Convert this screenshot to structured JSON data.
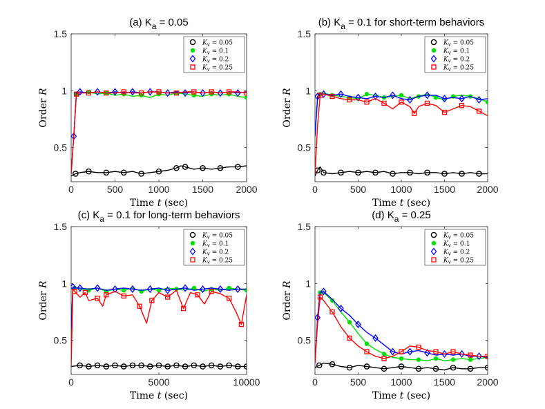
{
  "chart_data": [
    {
      "type": "line",
      "title": "(a) K",
      "title_subscript": "a",
      "title_suffix": " = 0.05",
      "xlabel": "Time",
      "xlabel_var": "t",
      "xlabel_unit": "(sec)",
      "ylabel": "Order",
      "ylabel_var": "R",
      "xlim": [
        0,
        2000
      ],
      "ylim": [
        0.2,
        1.5
      ],
      "xticks": [
        0,
        500,
        1000,
        1500,
        2000
      ],
      "yticks": [
        0.5,
        1,
        1.5
      ],
      "legend_position": "top-right",
      "series": [
        {
          "name": "Kv = 0.05",
          "label": "K_v = 0.05",
          "color": "#000000",
          "marker": "circle",
          "x": [
            0,
            50,
            100,
            200,
            300,
            400,
            500,
            600,
            700,
            800,
            900,
            1000,
            1100,
            1200,
            1250,
            1300,
            1400,
            1500,
            1600,
            1700,
            1800,
            1900,
            2000
          ],
          "y": [
            0.25,
            0.27,
            0.28,
            0.29,
            0.28,
            0.28,
            0.29,
            0.28,
            0.29,
            0.27,
            0.28,
            0.29,
            0.3,
            0.32,
            0.34,
            0.33,
            0.31,
            0.32,
            0.31,
            0.32,
            0.33,
            0.33,
            0.34
          ]
        },
        {
          "name": "Kv = 0.1",
          "label": "K_v = 0.1",
          "color": "#00e000",
          "marker": "dot",
          "x": [
            0,
            30,
            60,
            100,
            200,
            300,
            400,
            500,
            600,
            700,
            800,
            900,
            1000,
            1100,
            1200,
            1300,
            1400,
            1500,
            1600,
            1700,
            1800,
            1900,
            2000
          ],
          "y": [
            0.27,
            0.6,
            0.97,
            0.98,
            0.99,
            0.97,
            0.98,
            0.96,
            0.97,
            0.95,
            0.96,
            0.94,
            0.97,
            0.96,
            0.98,
            0.97,
            0.96,
            0.95,
            0.97,
            0.96,
            0.97,
            0.95,
            0.94
          ]
        },
        {
          "name": "Kv = 0.2",
          "label": "K_v = 0.2",
          "color": "#0000ff",
          "marker": "diamond",
          "x": [
            0,
            30,
            60,
            100,
            200,
            300,
            400,
            500,
            600,
            700,
            800,
            900,
            1000,
            1100,
            1200,
            1300,
            1400,
            1500,
            1600,
            1700,
            1800,
            1900,
            2000
          ],
          "y": [
            0.27,
            0.6,
            0.98,
            0.99,
            0.98,
            0.99,
            0.98,
            0.99,
            0.98,
            0.99,
            0.98,
            0.99,
            0.99,
            0.98,
            0.99,
            0.98,
            0.99,
            0.98,
            0.99,
            0.98,
            0.99,
            0.98,
            0.99
          ]
        },
        {
          "name": "Kv = 0.25",
          "label": "K_v = 0.25",
          "color": "#ff0000",
          "marker": "square",
          "x": [
            0,
            30,
            60,
            100,
            200,
            300,
            400,
            500,
            600,
            700,
            800,
            900,
            1000,
            1100,
            1200,
            1300,
            1400,
            1500,
            1600,
            1700,
            1800,
            1900,
            2000
          ],
          "y": [
            0.27,
            0.6,
            0.97,
            0.98,
            0.98,
            0.99,
            0.98,
            0.98,
            0.99,
            0.98,
            0.98,
            0.99,
            0.99,
            0.98,
            0.98,
            0.99,
            0.99,
            0.98,
            0.99,
            0.98,
            0.99,
            0.99,
            0.98
          ]
        }
      ]
    },
    {
      "type": "line",
      "title": "(b) K",
      "title_subscript": "a",
      "title_suffix": " = 0.1 for short-term behaviors",
      "xlabel": "Time",
      "xlabel_var": "t",
      "xlabel_unit": "(sec)",
      "ylabel": "Order",
      "ylabel_var": "R",
      "xlim": [
        0,
        2000
      ],
      "ylim": [
        0.2,
        1.5
      ],
      "xticks": [
        0,
        500,
        1000,
        1500,
        2000
      ],
      "yticks": [
        0.5,
        1,
        1.5
      ],
      "legend_position": "top-right",
      "series": [
        {
          "name": "Kv = 0.05",
          "label": "K_v = 0.05",
          "color": "#000000",
          "marker": "circle",
          "x": [
            0,
            30,
            60,
            100,
            200,
            300,
            400,
            500,
            600,
            700,
            800,
            900,
            1000,
            1100,
            1200,
            1300,
            1400,
            1500,
            1600,
            1700,
            1800,
            1900,
            2000
          ],
          "y": [
            0.25,
            0.3,
            0.33,
            0.28,
            0.27,
            0.28,
            0.29,
            0.28,
            0.29,
            0.28,
            0.29,
            0.27,
            0.28,
            0.28,
            0.27,
            0.28,
            0.28,
            0.27,
            0.28,
            0.27,
            0.28,
            0.27,
            0.27
          ]
        },
        {
          "name": "Kv = 0.1",
          "label": "K_v = 0.1",
          "color": "#00e000",
          "marker": "dot",
          "x": [
            0,
            30,
            60,
            100,
            200,
            300,
            400,
            500,
            600,
            700,
            800,
            900,
            1000,
            1100,
            1200,
            1300,
            1400,
            1500,
            1600,
            1700,
            1800,
            1900,
            2000
          ],
          "y": [
            0.6,
            0.93,
            0.97,
            0.98,
            0.96,
            0.95,
            0.94,
            0.93,
            0.97,
            0.96,
            0.94,
            0.95,
            0.96,
            0.93,
            0.95,
            0.97,
            0.94,
            0.92,
            0.95,
            0.96,
            0.95,
            0.93,
            0.9
          ]
        },
        {
          "name": "Kv = 0.2",
          "label": "K_v = 0.2",
          "color": "#0000ff",
          "marker": "diamond",
          "x": [
            0,
            30,
            60,
            100,
            200,
            300,
            400,
            500,
            600,
            700,
            800,
            900,
            1000,
            1100,
            1200,
            1300,
            1400,
            1500,
            1600,
            1700,
            1800,
            1900,
            2000
          ],
          "y": [
            0.6,
            0.95,
            0.98,
            0.97,
            0.96,
            0.97,
            0.95,
            0.94,
            0.93,
            0.95,
            0.94,
            0.96,
            0.93,
            0.92,
            0.95,
            0.96,
            0.96,
            0.93,
            0.94,
            0.93,
            0.95,
            0.92,
            0.93
          ]
        },
        {
          "name": "Kv = 0.25",
          "label": "K_v = 0.25",
          "color": "#ff0000",
          "marker": "square",
          "x": [
            0,
            30,
            60,
            100,
            200,
            300,
            400,
            500,
            600,
            700,
            800,
            900,
            1000,
            1100,
            1150,
            1200,
            1300,
            1400,
            1500,
            1600,
            1700,
            1800,
            1900,
            2000
          ],
          "y": [
            0.27,
            0.7,
            0.96,
            0.97,
            0.95,
            0.93,
            0.92,
            0.92,
            0.9,
            0.93,
            0.89,
            0.84,
            0.9,
            0.86,
            0.8,
            0.86,
            0.89,
            0.87,
            0.81,
            0.84,
            0.87,
            0.86,
            0.82,
            0.78
          ]
        }
      ]
    },
    {
      "type": "line",
      "title": "(c) K",
      "title_subscript": "a",
      "title_suffix": " = 0.1 for long-term behaviors",
      "xlabel": "Time",
      "xlabel_var": "t",
      "xlabel_unit": "(sec)",
      "ylabel": "Order",
      "ylabel_var": "R",
      "xlim": [
        0,
        10000
      ],
      "ylim": [
        0.2,
        1.5
      ],
      "xticks": [
        0,
        5000,
        10000
      ],
      "yticks": [
        0.5,
        1,
        1.5
      ],
      "legend_position": "top-right",
      "series": [
        {
          "name": "Kv = 0.05",
          "label": "K_v = 0.05",
          "color": "#000000",
          "marker": "circle",
          "x": [
            0,
            500,
            1000,
            1500,
            2000,
            2500,
            3000,
            3500,
            4000,
            4500,
            5000,
            5500,
            6000,
            6500,
            7000,
            7500,
            8000,
            8500,
            9000,
            9500,
            10000
          ],
          "y": [
            0.27,
            0.28,
            0.27,
            0.28,
            0.27,
            0.28,
            0.27,
            0.28,
            0.28,
            0.27,
            0.28,
            0.27,
            0.28,
            0.27,
            0.28,
            0.27,
            0.28,
            0.27,
            0.28,
            0.27,
            0.27
          ]
        },
        {
          "name": "Kv = 0.1",
          "label": "K_v = 0.1",
          "color": "#00e000",
          "marker": "dot",
          "x": [
            0,
            100,
            200,
            500,
            1000,
            1500,
            2000,
            2500,
            3000,
            3500,
            4000,
            4500,
            5000,
            5500,
            6000,
            6500,
            7000,
            7500,
            8000,
            8500,
            9000,
            9500,
            10000
          ],
          "y": [
            0.6,
            0.97,
            0.96,
            0.95,
            0.94,
            0.96,
            0.93,
            0.95,
            0.94,
            0.96,
            0.93,
            0.95,
            0.94,
            0.96,
            0.95,
            0.94,
            0.96,
            0.93,
            0.95,
            0.94,
            0.96,
            0.95,
            0.94
          ]
        },
        {
          "name": "Kv = 0.2",
          "label": "K_v = 0.2",
          "color": "#0000ff",
          "marker": "diamond",
          "x": [
            0,
            100,
            200,
            500,
            1000,
            1500,
            2000,
            2500,
            3000,
            3500,
            4000,
            4500,
            5000,
            5500,
            6000,
            6500,
            7000,
            7500,
            8000,
            8500,
            9000,
            9500,
            10000
          ],
          "y": [
            0.6,
            0.97,
            0.96,
            0.96,
            0.95,
            0.96,
            0.94,
            0.95,
            0.96,
            0.95,
            0.94,
            0.95,
            0.96,
            0.94,
            0.95,
            0.96,
            0.94,
            0.95,
            0.96,
            0.95,
            0.94,
            0.95,
            0.95
          ]
        },
        {
          "name": "Kv = 0.25",
          "label": "K_v = 0.25",
          "color": "#ff0000",
          "marker": "square",
          "x": [
            0,
            100,
            200,
            500,
            800,
            1000,
            1500,
            1800,
            2000,
            2500,
            3000,
            3500,
            3900,
            4300,
            4600,
            5000,
            5500,
            6000,
            6400,
            6800,
            7200,
            7600,
            8000,
            8500,
            9000,
            9400,
            9700,
            10000
          ],
          "y": [
            0.27,
            0.95,
            0.93,
            0.88,
            0.92,
            0.85,
            0.87,
            0.8,
            0.9,
            0.93,
            0.89,
            0.9,
            0.8,
            0.65,
            0.85,
            0.92,
            0.88,
            0.94,
            0.78,
            0.92,
            0.9,
            0.82,
            0.93,
            0.91,
            0.87,
            0.75,
            0.64,
            0.9
          ]
        }
      ]
    },
    {
      "type": "line",
      "title": "(d) K",
      "title_subscript": "a",
      "title_suffix": " = 0.25",
      "xlabel": "Time",
      "xlabel_var": "t",
      "xlabel_unit": "(sec)",
      "ylabel": "Order",
      "ylabel_var": "R",
      "xlim": [
        0,
        2000
      ],
      "ylim": [
        0.2,
        1.5
      ],
      "xticks": [
        0,
        500,
        1000,
        1500,
        2000
      ],
      "yticks": [
        0.5,
        1,
        1.5
      ],
      "legend_position": "top-right",
      "series": [
        {
          "name": "Kv = 0.05",
          "label": "K_v = 0.05",
          "color": "#000000",
          "marker": "circle",
          "x": [
            0,
            50,
            100,
            200,
            300,
            400,
            500,
            600,
            700,
            800,
            900,
            1000,
            1100,
            1200,
            1300,
            1400,
            1500,
            1600,
            1700,
            1800,
            1900,
            2000
          ],
          "y": [
            0.26,
            0.28,
            0.3,
            0.29,
            0.27,
            0.26,
            0.28,
            0.27,
            0.26,
            0.25,
            0.26,
            0.27,
            0.26,
            0.25,
            0.26,
            0.25,
            0.24,
            0.26,
            0.25,
            0.25,
            0.26,
            0.26
          ]
        },
        {
          "name": "Kv = 0.1",
          "label": "K_v = 0.1",
          "color": "#00e000",
          "marker": "dot",
          "x": [
            0,
            30,
            60,
            100,
            200,
            300,
            400,
            500,
            600,
            700,
            800,
            900,
            1000,
            1100,
            1200,
            1300,
            1400,
            1500,
            1600,
            1700,
            1800,
            1900,
            2000
          ],
          "y": [
            0.3,
            0.7,
            0.92,
            0.92,
            0.85,
            0.75,
            0.66,
            0.56,
            0.47,
            0.42,
            0.38,
            0.35,
            0.34,
            0.33,
            0.33,
            0.32,
            0.34,
            0.32,
            0.33,
            0.34,
            0.33,
            0.34,
            0.35
          ]
        },
        {
          "name": "Kv = 0.2",
          "label": "K_v = 0.2",
          "color": "#0000ff",
          "marker": "diamond",
          "x": [
            0,
            30,
            60,
            100,
            200,
            300,
            400,
            500,
            600,
            700,
            800,
            900,
            1000,
            1100,
            1200,
            1300,
            1400,
            1500,
            1600,
            1700,
            1800,
            1900,
            2000
          ],
          "y": [
            0.3,
            0.7,
            0.92,
            0.93,
            0.86,
            0.78,
            0.72,
            0.64,
            0.57,
            0.52,
            0.46,
            0.4,
            0.38,
            0.4,
            0.41,
            0.39,
            0.37,
            0.38,
            0.37,
            0.38,
            0.36,
            0.36,
            0.35
          ]
        },
        {
          "name": "Kv = 0.25",
          "label": "K_v = 0.25",
          "color": "#ff0000",
          "marker": "square",
          "x": [
            0,
            30,
            60,
            100,
            200,
            300,
            400,
            500,
            600,
            700,
            800,
            900,
            1000,
            1100,
            1200,
            1300,
            1400,
            1500,
            1600,
            1700,
            1800,
            1900,
            2000
          ],
          "y": [
            0.3,
            0.65,
            0.88,
            0.85,
            0.75,
            0.62,
            0.52,
            0.45,
            0.4,
            0.36,
            0.34,
            0.36,
            0.4,
            0.45,
            0.44,
            0.41,
            0.4,
            0.38,
            0.4,
            0.38,
            0.37,
            0.36,
            0.36
          ]
        }
      ]
    }
  ]
}
